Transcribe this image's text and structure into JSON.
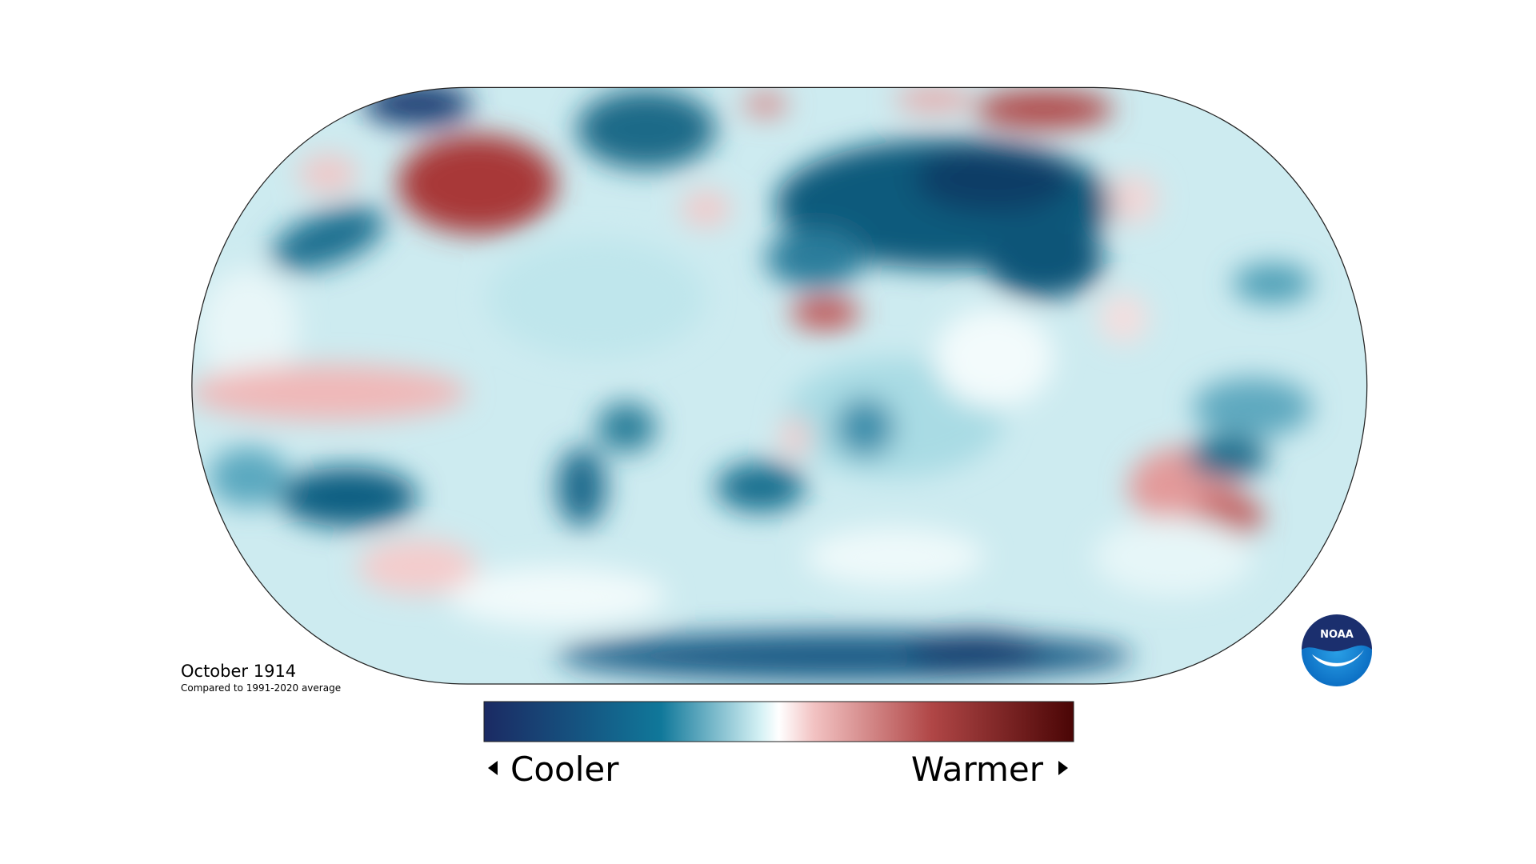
{
  "map": {
    "title": "October 1914",
    "subtitle": "Compared to 1991-2020 average",
    "legend": {
      "low_label": "Cooler",
      "high_label": "Warmer"
    }
  },
  "logo": {
    "text": "NOAA"
  }
}
